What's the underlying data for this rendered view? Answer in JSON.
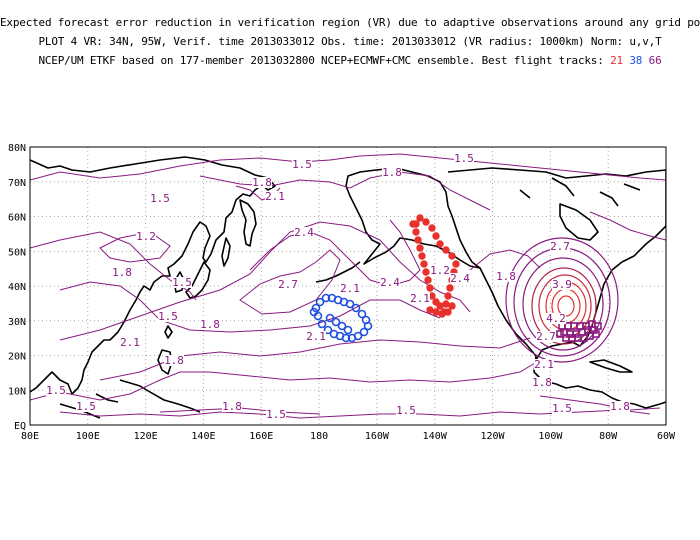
{
  "header": {
    "line1": "Expected forecast error reduction in verification region (VR) due to adaptive observations around any grid point.",
    "line2": "PLOT 4 VR: 34N, 95W, Verif. time 2013033012 Obs. time: 2013033012 (VR radius: 1000km) Norm: u,v,T",
    "line3_prefix": "NCEP/UM ETKF based on 177-member 2013032800 NCEP+ECMWF+CMC ensemble. Best flight tracks:",
    "track_21": "21",
    "track_38": "38",
    "track_66": "66"
  },
  "colors": {
    "contour": "#8a1a80",
    "contour_high": "#e8302c",
    "track_21": "#e8302c",
    "track_38": "#2050e0",
    "track_66": "#8a1a80",
    "coast": "#000000",
    "grid": "#999999"
  },
  "axes": {
    "lat_labels": [
      "80N",
      "70N",
      "60N",
      "50N",
      "40N",
      "30N",
      "20N",
      "10N",
      "EQ"
    ],
    "lon_labels": [
      "80E",
      "100E",
      "120E",
      "140E",
      "160E",
      "180",
      "160W",
      "140W",
      "120W",
      "100W",
      "80W",
      "60W"
    ]
  },
  "contour_labels": [
    {
      "t": "1.5"
    },
    {
      "t": "1.5"
    },
    {
      "t": "1.8"
    },
    {
      "t": "1.8"
    },
    {
      "t": "1.5"
    },
    {
      "t": "2.1"
    },
    {
      "t": "1.2"
    },
    {
      "t": "2.4"
    },
    {
      "t": "1.8"
    },
    {
      "t": "1.5"
    },
    {
      "t": "2.7"
    },
    {
      "t": "2.1"
    },
    {
      "t": "2.4"
    },
    {
      "t": "1.8"
    },
    {
      "t": "1.5"
    },
    {
      "t": "1.8"
    },
    {
      "t": "2.1"
    },
    {
      "t": "2.1"
    },
    {
      "t": "1.8"
    },
    {
      "t": "2.1"
    },
    {
      "t": "1.2"
    },
    {
      "t": "2.4"
    },
    {
      "t": "3.9"
    },
    {
      "t": "4.2"
    },
    {
      "t": "2.7"
    },
    {
      "t": "2.7"
    },
    {
      "t": "2.1"
    },
    {
      "t": "1.8"
    },
    {
      "t": "1.5"
    },
    {
      "t": "1.5"
    },
    {
      "t": "1.8"
    },
    {
      "t": "1.5"
    },
    {
      "t": "1.5"
    },
    {
      "t": "1.5"
    },
    {
      "t": "1.8"
    }
  ]
}
